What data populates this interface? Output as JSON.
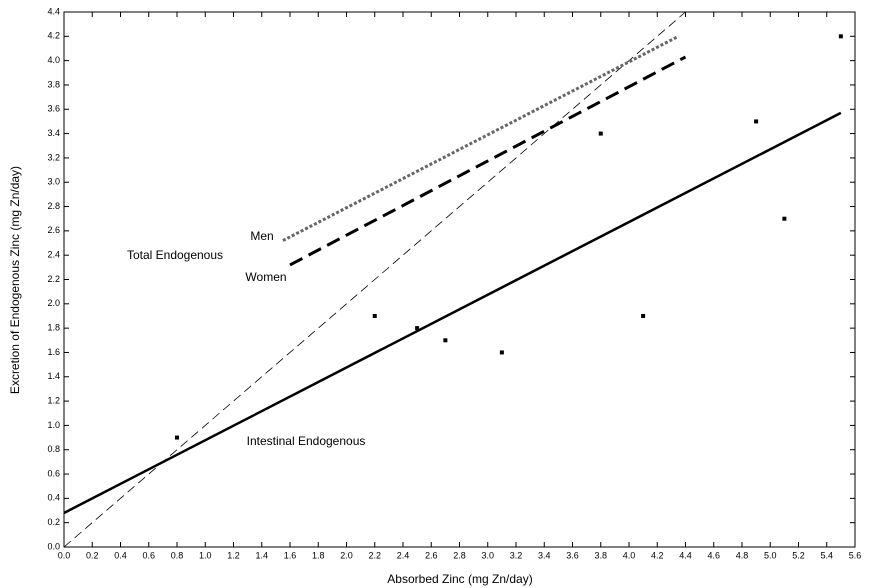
{
  "chart_data": {
    "type": "scatter",
    "xlabel": "Absorbed Zinc (mg Zn/day)",
    "ylabel": "Excretion of Endogenous Zinc (mg Zn/day)",
    "xlim": [
      0,
      5.6
    ],
    "ylim": [
      0,
      4.4
    ],
    "xticks": [
      {
        "value": 0,
        "label": "0.0"
      },
      0.2,
      0.4,
      0.6,
      0.8,
      {
        "value": 1,
        "label": "1.0"
      },
      1.2,
      1.4,
      1.6,
      1.8,
      {
        "value": 2,
        "label": "2.0"
      },
      2.2,
      2.4,
      2.6,
      2.8,
      {
        "value": 3,
        "label": "3.0"
      },
      3.2,
      3.4,
      3.6,
      3.8,
      {
        "value": 4,
        "label": "4.0"
      },
      4.2,
      4.4,
      4.6,
      4.8,
      {
        "value": 5,
        "label": "5.0"
      },
      5.2,
      5.4,
      5.6
    ],
    "yticks": [
      {
        "value": 0,
        "label": "0.0"
      },
      0.2,
      0.4,
      0.6,
      0.8,
      {
        "value": 1,
        "label": "1.0"
      },
      1.2,
      1.4,
      1.6,
      1.8,
      {
        "value": 2,
        "label": "2.0"
      },
      2.2,
      2.4,
      2.6,
      2.8,
      {
        "value": 3,
        "label": "3.0"
      },
      3.2,
      3.4,
      3.6,
      3.8,
      {
        "value": 4,
        "label": "4.0"
      },
      4.2,
      4.4
    ],
    "series": [
      {
        "type": "scatter",
        "color": "#000000",
        "x": [
          0.8,
          2.2,
          2.5,
          2.7,
          3.1,
          3.8,
          4.1,
          4.9,
          5.1,
          5.5
        ],
        "values": [
          0.9,
          1.9,
          1.8,
          1.7,
          1.6,
          3.4,
          1.9,
          3.5,
          2.7,
          4.2
        ]
      },
      {
        "type": "line",
        "style": "solid",
        "color": "#000000",
        "x": [
          0,
          5.5
        ],
        "values": [
          0.28,
          3.57
        ]
      },
      {
        "type": "line",
        "style": "thin-dash",
        "color": "#000000",
        "x": [
          0,
          4.4
        ],
        "values": [
          0,
          4.4
        ]
      },
      {
        "type": "line",
        "style": "dot",
        "color": "#666666",
        "x": [
          1.55,
          4.35
        ],
        "values": [
          2.52,
          4.2
        ]
      },
      {
        "type": "line",
        "style": "dash",
        "color": "#000000",
        "x": [
          1.6,
          4.4
        ],
        "values": [
          2.32,
          4.03
        ]
      }
    ],
    "annotations": [
      "Men",
      "Total Endogenous",
      "Women",
      "Intestinal Endogenous"
    ]
  }
}
